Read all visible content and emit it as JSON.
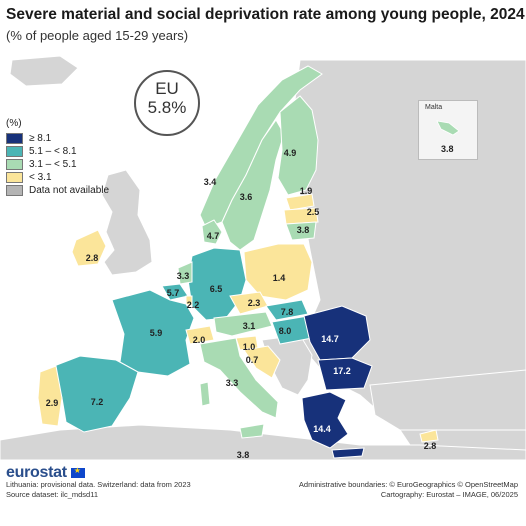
{
  "title": "Severe material and social deprivation rate among young people, 2024",
  "subtitle": "(% of people aged 15-29 years)",
  "eu": {
    "label": "EU",
    "value": "5.8%"
  },
  "legend": {
    "unit": "(%)",
    "items": [
      {
        "label": "≥ 8.1",
        "color": "#17317a"
      },
      {
        "label": "5.1 – < 8.1",
        "color": "#4bb5b5"
      },
      {
        "label": "3.1 – < 5.1",
        "color": "#a9dbb3"
      },
      {
        "label": "< 3.1",
        "color": "#fbe59a"
      },
      {
        "label": "Data not available",
        "color": "#b4b4b4"
      }
    ]
  },
  "colors": {
    "sea": "#ffffff",
    "non_eu_land": "#d5d5d5",
    "border": "#ffffff"
  },
  "map_values": {
    "ireland": "2.8",
    "portugal": "2.9",
    "spain": "7.2",
    "france": "5.9",
    "belgium": "5.7",
    "netherlands": "3.3",
    "luxembourg": "2.2",
    "germany": "6.5",
    "denmark": "4.7",
    "norway": "3.4",
    "sweden": "3.6",
    "finland": "4.9",
    "estonia": "1.9",
    "latvia": "2.5",
    "lithuania": "3.8",
    "poland": "1.4",
    "czechia": "2.3",
    "slovakia": "7.8",
    "austria": "3.1",
    "hungary": "8.0",
    "switzerland": "2.0",
    "slovenia": "1.0",
    "croatia": "0.7",
    "italy": "3.3",
    "romania": "14.7",
    "bulgaria": "17.2",
    "greece": "14.4",
    "cyprus": "2.8",
    "malta": "3.8",
    "malta_name": "Malta",
    "malta_mainland": "3.8"
  },
  "footer": {
    "logo": "eurostat",
    "note1": "Lithuania: provisional data. Switzerland: data from 2023",
    "note2": "Source dataset: ilc_mdsd11",
    "credit1": "Administrative boundaries: © EuroGeographics © OpenStreetMap",
    "credit2": "Cartography: Eurostat – IMAGE, 06/2025"
  }
}
